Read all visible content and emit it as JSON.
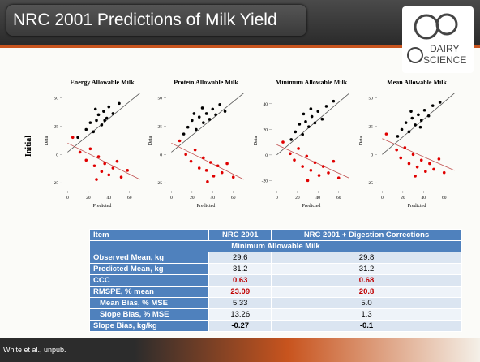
{
  "title": "NRC 2001 Predictions of Milk Yield",
  "logo": [
    "DAIRY",
    "SCIENCE"
  ],
  "row_label": "Initial",
  "chart_data": [
    {
      "type": "scatter",
      "title": "Energy Allowable Milk",
      "xlabel": "Predicted",
      "ylabel": "Data",
      "xlim": [
        -5,
        72
      ],
      "ylim": [
        -32,
        56
      ],
      "xticks": [
        0,
        20,
        40,
        60
      ],
      "yticks": [
        50,
        25,
        0,
        -25
      ],
      "series": [
        {
          "color": "#000000",
          "x": [
            10,
            18,
            22,
            25,
            28,
            30,
            33,
            35,
            38,
            40,
            44,
            50,
            27,
            36
          ],
          "values": [
            15,
            22,
            28,
            20,
            30,
            35,
            26,
            38,
            32,
            42,
            36,
            45,
            40,
            30
          ]
        },
        {
          "color": "#e00000",
          "x": [
            12,
            18,
            22,
            26,
            30,
            33,
            36,
            40,
            44,
            48,
            52,
            58,
            5,
            28
          ],
          "values": [
            2,
            -5,
            5,
            -10,
            -2,
            -15,
            -8,
            -18,
            -12,
            -6,
            -20,
            -14,
            15,
            -22
          ]
        }
      ],
      "lines": [
        {
          "color": "#555555",
          "x": [
            0,
            70
          ],
          "values": [
            2,
            54
          ]
        },
        {
          "color": "#c05050",
          "x": [
            0,
            70
          ],
          "values": [
            10,
            -22
          ]
        }
      ]
    },
    {
      "type": "scatter",
      "title": "Protein Allowable Milk",
      "xlabel": "Predicted",
      "ylabel": "Data",
      "xlim": [
        -5,
        72
      ],
      "ylim": [
        -32,
        56
      ],
      "xticks": [
        0,
        20,
        40,
        60
      ],
      "yticks": [
        50,
        25,
        0,
        -25
      ],
      "series": [
        {
          "color": "#000000",
          "x": [
            12,
            16,
            20,
            24,
            27,
            31,
            34,
            37,
            40,
            43,
            47,
            52,
            30,
            22
          ],
          "values": [
            18,
            24,
            30,
            22,
            33,
            28,
            36,
            31,
            40,
            35,
            44,
            38,
            41,
            36
          ]
        },
        {
          "color": "#e00000",
          "x": [
            14,
            19,
            23,
            27,
            31,
            34,
            38,
            41,
            45,
            49,
            54,
            60,
            8,
            35
          ],
          "values": [
            0,
            -6,
            4,
            -12,
            -3,
            -14,
            -7,
            -19,
            -10,
            -16,
            -8,
            -20,
            12,
            -24
          ]
        }
      ],
      "lines": [
        {
          "color": "#555555",
          "x": [
            0,
            70
          ],
          "values": [
            2,
            54
          ]
        },
        {
          "color": "#c05050",
          "x": [
            0,
            70
          ],
          "values": [
            10,
            -22
          ]
        }
      ]
    },
    {
      "type": "scatter",
      "title": "Minimum Allowable Milk",
      "xlabel": "Predicted",
      "ylabel": "Data",
      "xlim": [
        -5,
        72
      ],
      "ylim": [
        -28,
        50
      ],
      "xticks": [
        0,
        20,
        40,
        60
      ],
      "yticks": [
        40,
        20,
        0,
        -20
      ],
      "series": [
        {
          "color": "#000000",
          "x": [
            14,
            18,
            22,
            25,
            28,
            31,
            34,
            37,
            40,
            44,
            48,
            55,
            26,
            33
          ],
          "values": [
            12,
            18,
            24,
            16,
            26,
            22,
            30,
            25,
            34,
            28,
            38,
            42,
            32,
            36
          ]
        },
        {
          "color": "#e00000",
          "x": [
            13,
            17,
            21,
            25,
            29,
            33,
            37,
            41,
            45,
            50,
            55,
            60,
            6,
            30
          ],
          "values": [
            1,
            -4,
            5,
            -9,
            -1,
            -12,
            -6,
            -16,
            -9,
            -14,
            -5,
            -18,
            10,
            -20
          ]
        }
      ],
      "lines": [
        {
          "color": "#555555",
          "x": [
            0,
            70
          ],
          "values": [
            0,
            48
          ]
        },
        {
          "color": "#c05050",
          "x": [
            0,
            70
          ],
          "values": [
            8,
            -18
          ]
        }
      ]
    },
    {
      "type": "scatter",
      "title": "Mean Allowable Milk",
      "xlabel": "Predicted",
      "ylabel": "Data",
      "xlim": [
        -5,
        72
      ],
      "ylim": [
        -32,
        56
      ],
      "xticks": [
        0,
        20,
        40,
        60
      ],
      "yticks": [
        50,
        25,
        0,
        -25
      ],
      "series": [
        {
          "color": "#000000",
          "x": [
            15,
            19,
            23,
            26,
            29,
            32,
            35,
            38,
            41,
            45,
            49,
            56,
            28,
            37
          ],
          "values": [
            16,
            22,
            28,
            20,
            32,
            26,
            35,
            30,
            39,
            34,
            43,
            46,
            38,
            24
          ]
        },
        {
          "color": "#e00000",
          "x": [
            14,
            18,
            22,
            26,
            30,
            34,
            38,
            42,
            46,
            50,
            55,
            60,
            4,
            32
          ],
          "values": [
            4,
            -3,
            6,
            -8,
            0,
            -11,
            -5,
            -15,
            -8,
            -13,
            -4,
            -16,
            18,
            -19
          ]
        }
      ],
      "lines": [
        {
          "color": "#555555",
          "x": [
            0,
            70
          ],
          "values": [
            0,
            54
          ]
        },
        {
          "color": "#c05050",
          "x": [
            0,
            70
          ],
          "values": [
            14,
            -14
          ]
        }
      ]
    }
  ],
  "table": {
    "header": [
      "Item",
      "NRC 2001",
      "NRC 2001 + Digestion Corrections"
    ],
    "section": "Minimum Allowable Milk",
    "rows": [
      [
        "Observed Mean, kg",
        "29.6",
        "29.8"
      ],
      [
        "Predicted Mean, kg",
        "31.2",
        "31.2"
      ],
      [
        "CCC",
        "0.63",
        "0.68"
      ],
      [
        "RMSPE, % mean",
        "23.09",
        "20.8"
      ],
      [
        "Mean Bias, % MSE",
        "5.33",
        "5.0"
      ],
      [
        "Slope Bias, % MSE",
        "13.26",
        "1.3"
      ],
      [
        "Slope Bias, kg/kg",
        "-0.27",
        "-0.1"
      ]
    ]
  },
  "footer": "White et al., unpub."
}
